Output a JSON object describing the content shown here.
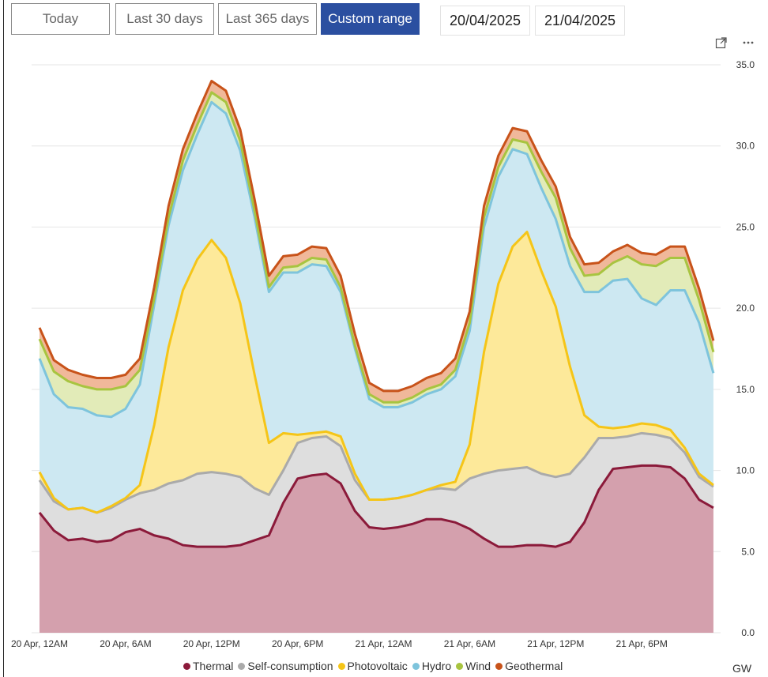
{
  "toolbar": {
    "buttons": [
      {
        "label": "Today",
        "active": false
      },
      {
        "label": "Last 30 days",
        "active": false
      },
      {
        "label": "Last 365 days",
        "active": false
      },
      {
        "label": "Custom range",
        "active": true
      }
    ],
    "start_date": "20/04/2025",
    "end_date": "21/04/2025",
    "icons": [
      "expand-icon",
      "more-options-icon"
    ]
  },
  "chart_data": {
    "type": "area",
    "stacked": true,
    "unit": "GW",
    "x_tick_labels": [
      "20 Apr, 12AM",
      "20 Apr, 6AM",
      "20 Apr, 12PM",
      "20 Apr, 6PM",
      "21 Apr, 12AM",
      "21 Apr, 6AM",
      "21 Apr, 12PM",
      "21 Apr, 6PM"
    ],
    "y_tick_labels": [
      "0.0",
      "5.0",
      "10.0",
      "15.0",
      "20.0",
      "25.0",
      "30.0",
      "35.0"
    ],
    "ylim": [
      0,
      35
    ],
    "grid": true,
    "legend_placement": "bottom",
    "x_hours": [
      0,
      1,
      2,
      3,
      4,
      5,
      6,
      7,
      8,
      9,
      10,
      11,
      12,
      13,
      14,
      15,
      16,
      17,
      18,
      19,
      20,
      21,
      22,
      23,
      24,
      25,
      26,
      27,
      28,
      29,
      30,
      31,
      32,
      33,
      34,
      35,
      36,
      37,
      38,
      39,
      40,
      41,
      42,
      43,
      44,
      45,
      46,
      47
    ],
    "series": [
      {
        "name": "Thermal",
        "color": "#8b1a3a",
        "fill": "#d4a0ad",
        "values": [
          7.4,
          6.3,
          5.7,
          5.8,
          5.6,
          5.7,
          6.2,
          6.4,
          6.0,
          5.8,
          5.4,
          5.3,
          5.3,
          5.3,
          5.4,
          5.7,
          6.0,
          8.0,
          9.5,
          9.7,
          9.8,
          9.2,
          7.5,
          6.5,
          6.4,
          6.5,
          6.7,
          7.0,
          7.0,
          6.8,
          6.4,
          5.8,
          5.3,
          5.3,
          5.4,
          5.4,
          5.3,
          5.6,
          6.8,
          8.8,
          10.1,
          10.2,
          10.3,
          10.3,
          10.2,
          9.5,
          8.2,
          7.7
        ]
      },
      {
        "name": "Self-consumption",
        "color": "#aaaaaa",
        "fill": "#dedede",
        "values": [
          2.0,
          1.8,
          1.9,
          1.9,
          1.8,
          2.0,
          2.0,
          2.2,
          2.8,
          3.4,
          4.0,
          4.5,
          4.6,
          4.5,
          4.2,
          3.2,
          2.5,
          2.0,
          2.2,
          2.3,
          2.3,
          2.3,
          1.9,
          1.7,
          1.8,
          1.8,
          1.8,
          1.8,
          1.9,
          2.0,
          3.1,
          4.0,
          4.7,
          4.8,
          4.8,
          4.4,
          4.3,
          4.2,
          4.0,
          3.2,
          1.9,
          1.9,
          2.0,
          1.9,
          1.8,
          1.6,
          1.4,
          1.3
        ]
      },
      {
        "name": "Photovoltaic",
        "color": "#f5c518",
        "fill": "#fde99a",
        "values": [
          0.5,
          0.2,
          0.0,
          0.0,
          0.0,
          0.1,
          0.1,
          0.5,
          4.0,
          8.4,
          11.7,
          13.2,
          14.3,
          13.3,
          10.7,
          7.0,
          3.2,
          2.3,
          0.5,
          0.3,
          0.3,
          0.6,
          0.4,
          0.0,
          0.0,
          0.0,
          0.0,
          0.0,
          0.2,
          0.5,
          2.1,
          7.5,
          11.5,
          13.7,
          14.5,
          12.5,
          10.5,
          6.6,
          2.6,
          0.7,
          0.6,
          0.6,
          0.6,
          0.6,
          0.5,
          0.3,
          0.2,
          0.1
        ]
      },
      {
        "name": "Hydro",
        "color": "#7ec4dc",
        "fill": "#cde8f2",
        "values": [
          7.0,
          6.4,
          6.3,
          6.1,
          6.0,
          5.5,
          5.5,
          6.2,
          7.4,
          7.5,
          7.4,
          7.7,
          8.5,
          8.9,
          9.4,
          9.7,
          9.3,
          9.9,
          10.0,
          10.4,
          10.2,
          8.9,
          7.7,
          6.2,
          5.7,
          5.6,
          5.7,
          5.9,
          5.9,
          6.5,
          7.0,
          7.7,
          6.6,
          6.0,
          4.8,
          5.1,
          5.4,
          6.2,
          7.6,
          8.3,
          9.1,
          9.1,
          7.7,
          7.4,
          8.6,
          9.7,
          9.3,
          6.9
        ]
      },
      {
        "name": "Wind",
        "color": "#a8c440",
        "fill": "#e2ebb8",
        "values": [
          1.2,
          1.4,
          1.6,
          1.4,
          1.6,
          1.7,
          1.4,
          0.9,
          0.4,
          0.5,
          0.6,
          0.6,
          0.6,
          0.7,
          0.6,
          0.4,
          0.3,
          0.3,
          0.4,
          0.4,
          0.4,
          0.3,
          0.2,
          0.3,
          0.3,
          0.3,
          0.3,
          0.3,
          0.3,
          0.4,
          0.5,
          0.6,
          0.6,
          0.6,
          0.7,
          1.0,
          1.3,
          1.1,
          1.0,
          1.1,
          1.1,
          1.4,
          2.1,
          2.4,
          2.0,
          2.0,
          1.4,
          1.3
        ]
      },
      {
        "name": "Geothermal",
        "color": "#c8531a",
        "fill": "#f0b89a",
        "values": [
          0.7,
          0.7,
          0.7,
          0.7,
          0.7,
          0.7,
          0.7,
          0.7,
          0.7,
          0.7,
          0.7,
          0.7,
          0.7,
          0.7,
          0.7,
          0.7,
          0.7,
          0.7,
          0.7,
          0.7,
          0.7,
          0.7,
          0.7,
          0.7,
          0.7,
          0.7,
          0.7,
          0.7,
          0.7,
          0.7,
          0.7,
          0.7,
          0.7,
          0.7,
          0.7,
          0.7,
          0.7,
          0.7,
          0.7,
          0.7,
          0.7,
          0.7,
          0.7,
          0.7,
          0.7,
          0.7,
          0.7,
          0.7
        ]
      }
    ]
  }
}
